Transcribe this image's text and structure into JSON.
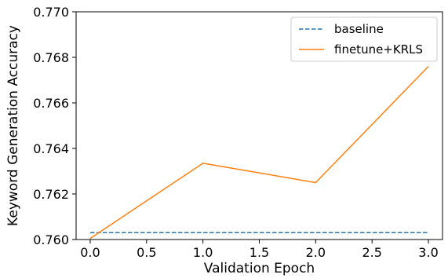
{
  "chart_data": {
    "type": "line",
    "xlabel": "Validation Epoch",
    "ylabel": "Keyword Generation Accuracy",
    "xlim": [
      -0.125,
      3.125
    ],
    "ylim": [
      0.76,
      0.77
    ],
    "xticks": [
      0.0,
      0.5,
      1.0,
      1.5,
      2.0,
      2.5,
      3.0
    ],
    "xtick_labels": [
      "0.0",
      "0.5",
      "1.0",
      "1.5",
      "2.0",
      "2.5",
      "3.0"
    ],
    "yticks": [
      0.76,
      0.762,
      0.764,
      0.766,
      0.768,
      0.77
    ],
    "ytick_labels": [
      "0.760",
      "0.762",
      "0.764",
      "0.766",
      "0.768",
      "0.770"
    ],
    "grid": false,
    "legend_position": "top-right",
    "series": [
      {
        "name": "baseline",
        "color": "#1f77b4",
        "style": "dashed",
        "x": [
          0.0,
          3.0
        ],
        "y": [
          0.7603,
          0.7603
        ]
      },
      {
        "name": "finetune+KRLS",
        "color": "#ff7f0e",
        "style": "solid",
        "x": [
          0.0,
          1.0,
          2.0,
          3.0
        ],
        "y": [
          0.76005,
          0.76335,
          0.7625,
          0.7676
        ]
      }
    ]
  }
}
